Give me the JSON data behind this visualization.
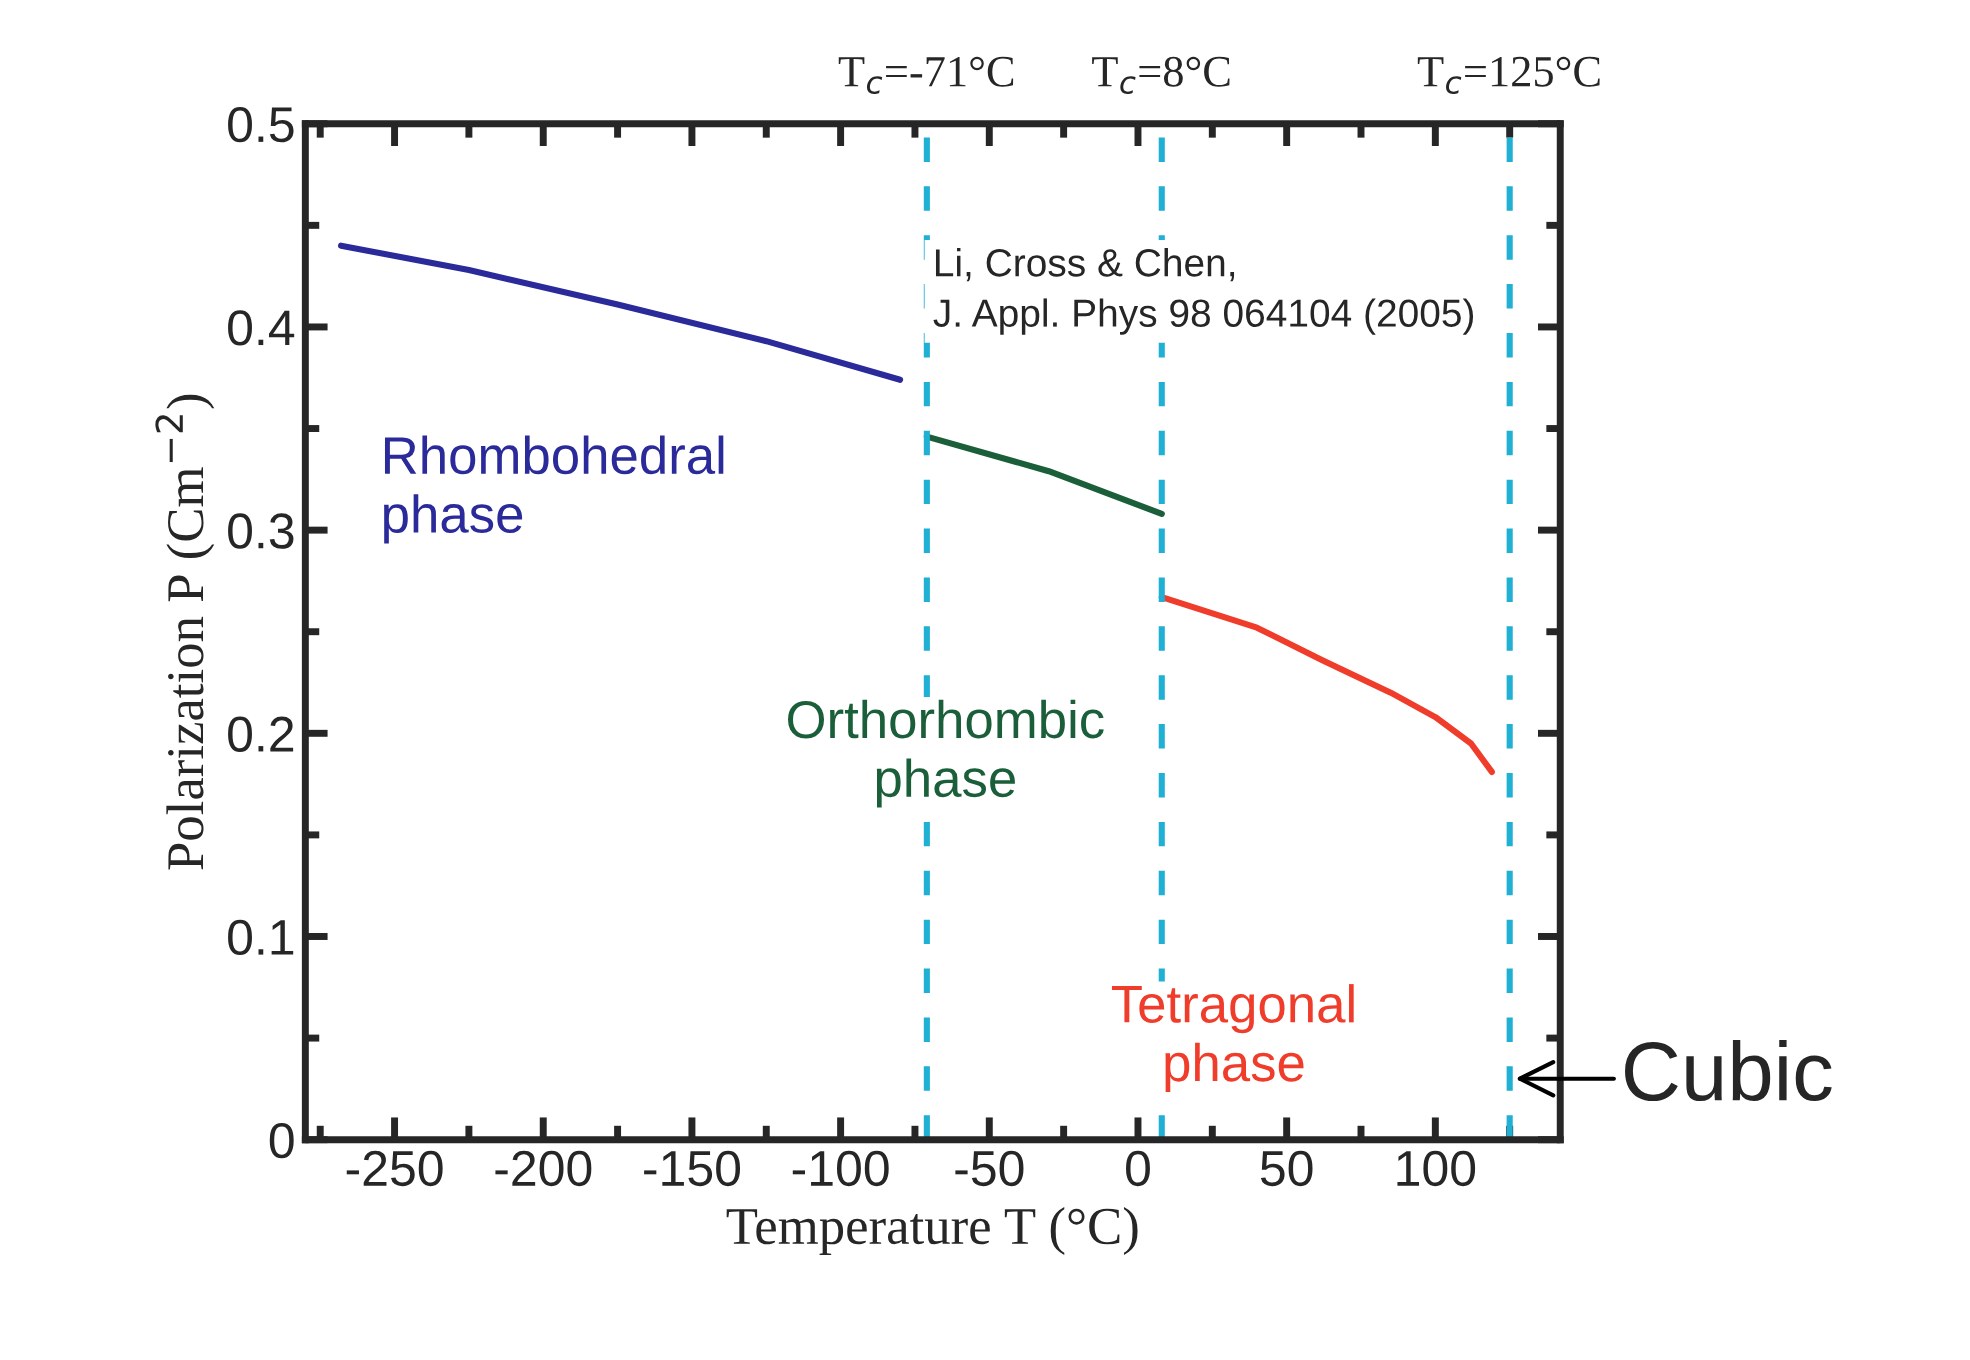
{
  "chart_data": {
    "type": "line",
    "xlabel": "Temperature T (°C)",
    "ylabel": "Polarization P (Cm$^{−2}$)",
    "series": [
      {
        "color": "#2a2a9a",
        "x": [
          -268,
          -225,
          -175,
          -125,
          -80
        ],
        "values": [
          0.44,
          0.428,
          0.411,
          0.393,
          0.374
        ]
      },
      {
        "color": "#1a5e3a",
        "x": [
          -71,
          -30,
          8
        ],
        "values": [
          0.346,
          0.329,
          0.308
        ]
      },
      {
        "color": "#f03c2a",
        "x": [
          8,
          40,
          62,
          85,
          100,
          112,
          119
        ],
        "values": [
          0.267,
          0.252,
          0.236,
          0.22,
          0.208,
          0.195,
          0.181
        ]
      }
    ],
    "xlim": [
      -280,
      142
    ],
    "ylim": [
      0,
      0.5
    ],
    "xticks": [
      -250,
      -200,
      -150,
      -100,
      -50,
      0,
      50,
      100
    ],
    "yticks": [
      0,
      0.1,
      0.2,
      0.3,
      0.4,
      0.5
    ],
    "grid": false,
    "marker": "none",
    "line_style": "solid",
    "ref_lines": [
      {
        "axis": "x",
        "value": -71,
        "label": "T$_{c}$=-71°C",
        "color": "#1fb0d4",
        "line_style": "dashed"
      },
      {
        "axis": "x",
        "value": 8,
        "label": "T$_{c}$=8°C",
        "color": "#1fb0d4",
        "line_style": "dashed"
      },
      {
        "axis": "x",
        "value": 125,
        "label": "T$_{c}$=125°C",
        "color": "#1fb0d4",
        "line_style": "dashed"
      }
    ],
    "annotations": [
      "Rhombohedral\nphase",
      "Orthorhombic\nphase",
      "Tetragonal\nphase",
      {
        "text": "Cubic",
        "x": 125,
        "y": 0.03
      },
      "Li, Cross & Chen,\nJ. Appl. Phys 98 064104 (2005)"
    ]
  }
}
